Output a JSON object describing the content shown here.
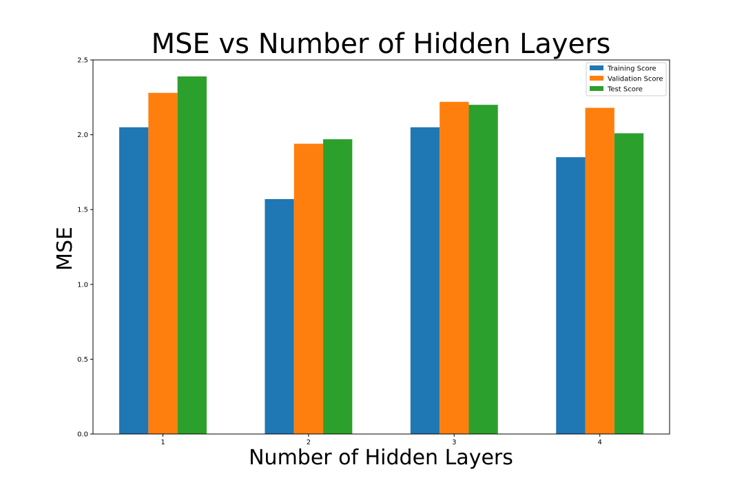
{
  "chart_data": {
    "type": "bar",
    "title": "MSE vs Number of Hidden Layers",
    "xlabel": "Number of Hidden Layers",
    "ylabel": "MSE",
    "categories": [
      "1",
      "2",
      "3",
      "4"
    ],
    "ylim": [
      0,
      2.5
    ],
    "yticks": [
      "0.0",
      "0.5",
      "1.0",
      "1.5",
      "2.0",
      "2.5"
    ],
    "grid": false,
    "legend_position": "top-right",
    "series": [
      {
        "name": "Training Score",
        "color": "#1f77b4",
        "values": [
          2.05,
          1.57,
          2.05,
          1.85
        ]
      },
      {
        "name": "Validation Score",
        "color": "#ff7f0e",
        "values": [
          2.28,
          1.94,
          2.22,
          2.18
        ]
      },
      {
        "name": "Test Score",
        "color": "#2ca02c",
        "values": [
          2.39,
          1.97,
          2.2,
          2.01
        ]
      }
    ]
  }
}
